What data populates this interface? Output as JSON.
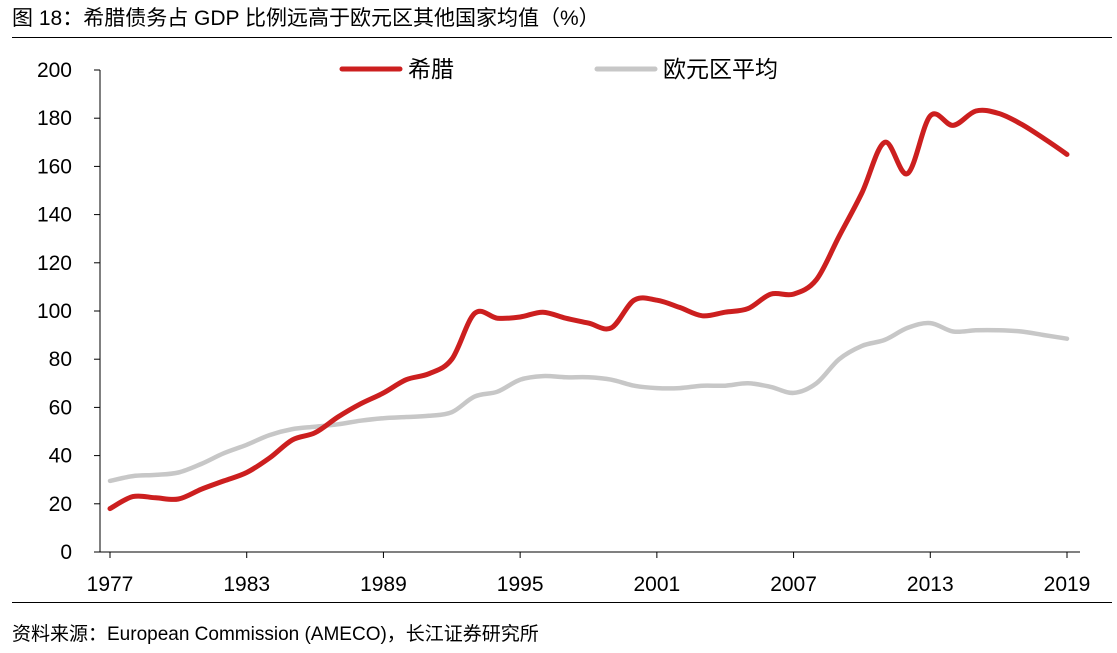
{
  "figure": {
    "title": "图 18：希腊债务占 GDP 比例远高于欧元区其他国家均值（%）",
    "source": "资料来源：European Commission (AMECO)，长江证券研究所"
  },
  "chart_data": {
    "type": "line",
    "title": "希腊债务占 GDP 比例远高于欧元区其他国家均值（%）",
    "xlabel": "",
    "ylabel": "",
    "xlim": [
      1977,
      2019
    ],
    "ylim": [
      0,
      200
    ],
    "y_ticks": [
      0,
      20,
      40,
      60,
      80,
      100,
      120,
      140,
      160,
      180,
      200
    ],
    "x_ticks": [
      1977,
      1983,
      1989,
      1995,
      2001,
      2007,
      2013,
      2019
    ],
    "legend_position": "top-center",
    "x": [
      1977,
      1978,
      1979,
      1980,
      1981,
      1982,
      1983,
      1984,
      1985,
      1986,
      1987,
      1988,
      1989,
      1990,
      1991,
      1992,
      1993,
      1994,
      1995,
      1996,
      1997,
      1998,
      1999,
      2000,
      2001,
      2002,
      2003,
      2004,
      2005,
      2006,
      2007,
      2008,
      2009,
      2010,
      2011,
      2012,
      2013,
      2014,
      2015,
      2016,
      2017,
      2018,
      2019
    ],
    "series": [
      {
        "name": "希腊",
        "color": "#cc1f1f",
        "values": [
          18,
          23,
          22.5,
          22,
          26,
          29.5,
          33,
          39,
          46.5,
          49.5,
          56,
          61.5,
          66,
          71.5,
          74,
          80,
          99,
          97,
          97.5,
          99.5,
          97,
          95,
          93,
          104.5,
          104.5,
          101.5,
          98,
          99.5,
          101,
          107,
          107,
          113,
          131,
          149,
          170,
          157,
          181,
          177,
          183,
          182,
          177.5,
          171.5,
          165
        ]
      },
      {
        "name": "欧元区平均",
        "color": "#c7c7c7",
        "values": [
          29.5,
          31.5,
          32,
          33,
          36.5,
          41,
          44.5,
          48.5,
          51,
          52,
          53,
          54.5,
          55.5,
          56,
          56.5,
          58,
          64.5,
          66.5,
          71.5,
          73,
          72.5,
          72.5,
          71.5,
          69,
          68,
          68,
          69,
          69,
          70,
          68.5,
          66,
          70,
          80,
          85.5,
          88,
          93,
          95,
          91.5,
          92,
          92,
          91.5,
          90,
          88.5
        ]
      }
    ]
  }
}
